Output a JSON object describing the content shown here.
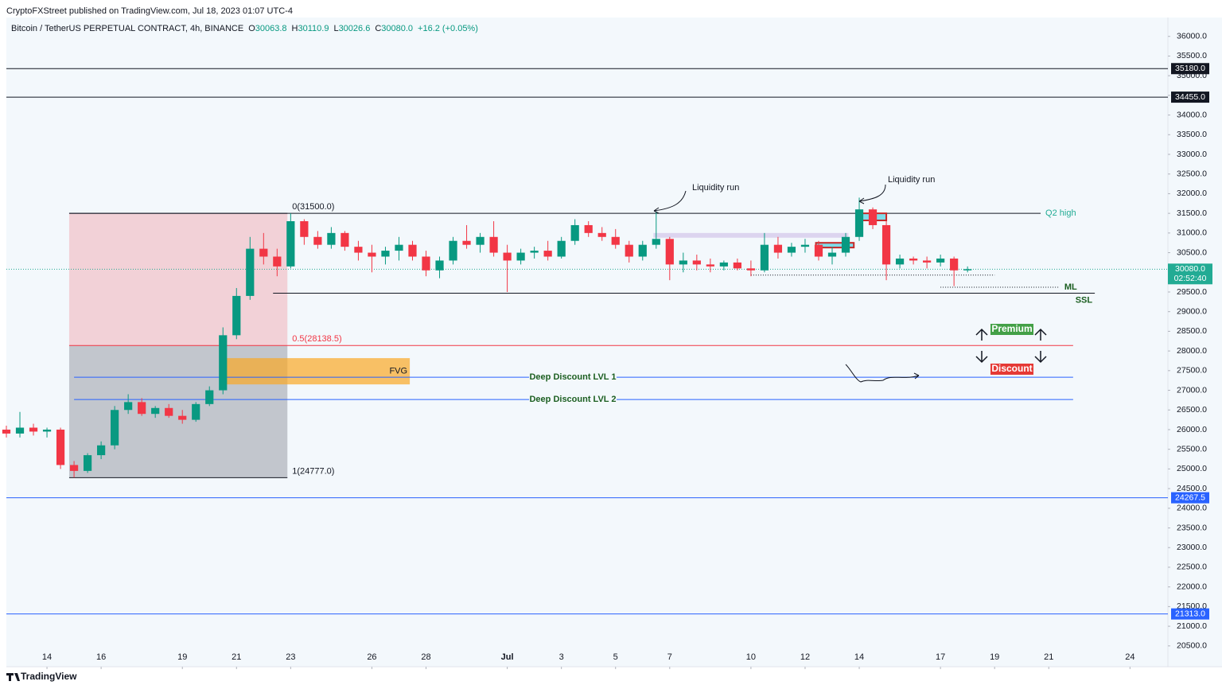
{
  "header": {
    "publisher": "CryptoFXStreet published on TradingView.com, Jul 18, 2023 01:07 UTC-4",
    "footer": "TradingView"
  },
  "chart_data": {
    "type": "candlestick",
    "title": "Bitcoin / TetherUS PERPETUAL CONTRACT, 4h, BINANCE",
    "ohlc": [
      {
        "label": "O",
        "value": "30063.8"
      },
      {
        "label": "H",
        "value": "30110.9"
      },
      {
        "label": "L",
        "value": "30026.6"
      },
      {
        "label": "C",
        "value": "30080.0"
      },
      {
        "value": "+16.2 (+0.05%)"
      }
    ],
    "x": [
      -1.5,
      -1,
      -0.5,
      0,
      0.5,
      1,
      1.5,
      2,
      2.5,
      3,
      3.5,
      4,
      4.5,
      5,
      5.5,
      6,
      6.5,
      7,
      7.5,
      8,
      8.5,
      9,
      9.5,
      10,
      10.5,
      11,
      11.5,
      12,
      12.5,
      13,
      13.5,
      14,
      14.5,
      15,
      15.5,
      16,
      16.5,
      17,
      17.5,
      18,
      18.5,
      19,
      19.5,
      20,
      20.5,
      21,
      21.5,
      22,
      22.5,
      23,
      23.5,
      24,
      24.5,
      25,
      25.5,
      26,
      26.5,
      27,
      27.5,
      28,
      28.5,
      29,
      29.5,
      30,
      30.5,
      31,
      31.5,
      32,
      32.5,
      33,
      33.5,
      34
    ],
    "open": [
      26000,
      25900,
      26050,
      25950,
      26000,
      25100,
      24950,
      25350,
      25600,
      26500,
      26700,
      26400,
      26550,
      26350,
      26250,
      26650,
      27000,
      28400,
      29400,
      30600,
      30400,
      30150,
      31300,
      30900,
      30700,
      31000,
      30650,
      30500,
      30400,
      30550,
      30700,
      30400,
      30050,
      30300,
      30800,
      30700,
      30900,
      30500,
      30300,
      30500,
      30550,
      30400,
      30800,
      31200,
      31000,
      30900,
      30700,
      30400,
      30700,
      30850,
      30200,
      30300,
      30200,
      30150,
      30250,
      30100,
      30050,
      30700,
      30500,
      30650,
      30700,
      30400,
      30500,
      30900,
      31600,
      31200,
      30200,
      30350,
      30300,
      30250,
      30350,
      30050
    ],
    "high": [
      26100,
      26450,
      26150,
      26050,
      26050,
      25200,
      25400,
      25700,
      26600,
      26900,
      26800,
      26600,
      26650,
      26500,
      26700,
      27100,
      28600,
      29600,
      30900,
      31000,
      30600,
      31500,
      31350,
      31050,
      31150,
      31050,
      30800,
      30700,
      30650,
      30900,
      30800,
      30550,
      30400,
      30900,
      31200,
      31000,
      31300,
      30700,
      30600,
      30650,
      30800,
      30900,
      31350,
      31300,
      31150,
      31100,
      30800,
      30800,
      31550,
      30900,
      30500,
      30450,
      30350,
      30300,
      30350,
      30300,
      31000,
      30900,
      30750,
      30850,
      30800,
      30650,
      31000,
      31900,
      31650,
      31300,
      30450,
      30400,
      30400,
      30450,
      30400,
      30150
    ],
    "low": [
      25800,
      25800,
      25850,
      25800,
      25000,
      24780,
      24900,
      25250,
      25500,
      26400,
      26350,
      26300,
      26300,
      26150,
      26200,
      26600,
      26900,
      28300,
      29300,
      30200,
      29900,
      30100,
      30700,
      30600,
      30600,
      30550,
      30300,
      30000,
      30200,
      30300,
      30300,
      29900,
      29850,
      30200,
      30600,
      30500,
      30400,
      29500,
      30200,
      30350,
      30300,
      30350,
      30700,
      30900,
      30800,
      30600,
      30250,
      30300,
      30600,
      29800,
      30000,
      30050,
      30000,
      30050,
      30050,
      29900,
      30000,
      30350,
      30400,
      30500,
      30300,
      30200,
      30400,
      30800,
      31100,
      29800,
      30100,
      30200,
      30100,
      30150,
      29650,
      30000
    ],
    "close": [
      25900,
      26050,
      25950,
      26000,
      25100,
      24950,
      25350,
      25600,
      26500,
      26700,
      26400,
      26550,
      26350,
      26250,
      26650,
      27000,
      28400,
      29400,
      30600,
      30400,
      30150,
      31300,
      30900,
      30700,
      31000,
      30650,
      30500,
      30400,
      30550,
      30700,
      30400,
      30050,
      30300,
      30800,
      30700,
      30900,
      30500,
      30300,
      30500,
      30550,
      30400,
      30800,
      31200,
      31000,
      30900,
      30700,
      30400,
      30700,
      30850,
      30200,
      30300,
      30200,
      30150,
      30250,
      30100,
      30050,
      30700,
      30500,
      30650,
      30700,
      30400,
      30500,
      30900,
      31600,
      31200,
      30200,
      30350,
      30300,
      30250,
      30350,
      30050,
      30080
    ],
    "up_color": "#089981",
    "down_color": "#f23645",
    "xlim": [
      -1.5,
      41.4
    ],
    "xticks": [
      {
        "value": 0,
        "label": "14"
      },
      {
        "value": 2,
        "label": "16"
      },
      {
        "value": 5,
        "label": "19"
      },
      {
        "value": 7,
        "label": "21"
      },
      {
        "value": 9,
        "label": "23"
      },
      {
        "value": 12,
        "label": "26"
      },
      {
        "value": 14,
        "label": "28"
      },
      {
        "value": 17,
        "label": "Jul"
      },
      {
        "value": 19,
        "label": "3"
      },
      {
        "value": 21,
        "label": "5"
      },
      {
        "value": 23,
        "label": "7"
      },
      {
        "value": 26,
        "label": "10"
      },
      {
        "value": 28,
        "label": "12"
      },
      {
        "value": 30,
        "label": "14"
      },
      {
        "value": 33,
        "label": "17"
      },
      {
        "value": 35,
        "label": "19"
      },
      {
        "value": 37,
        "label": "21"
      },
      {
        "value": 40,
        "label": "24"
      }
    ],
    "ylim": [
      19970,
      36480
    ],
    "yticks": [
      {
        "value": 20500,
        "label": "20500.0"
      },
      {
        "value": 21000,
        "label": "21000.0"
      },
      {
        "value": 21500,
        "label": "21500.0"
      },
      {
        "value": 22000,
        "label": "22000.0"
      },
      {
        "value": 22500,
        "label": "22500.0"
      },
      {
        "value": 23000,
        "label": "23000.0"
      },
      {
        "value": 23500,
        "label": "23500.0"
      },
      {
        "value": 24000,
        "label": "24000.0"
      },
      {
        "value": 24500,
        "label": "24500.0"
      },
      {
        "value": 25000,
        "label": "25000.0"
      },
      {
        "value": 25500,
        "label": "25500.0"
      },
      {
        "value": 26000,
        "label": "26000.0"
      },
      {
        "value": 26500,
        "label": "26500.0"
      },
      {
        "value": 27000,
        "label": "27000.0"
      },
      {
        "value": 27500,
        "label": "27500.0"
      },
      {
        "value": 28000,
        "label": "28000.0"
      },
      {
        "value": 28500,
        "label": "28500.0"
      },
      {
        "value": 29000,
        "label": "29000.0"
      },
      {
        "value": 29500,
        "label": "29500.0"
      },
      {
        "value": 30000,
        "label": "30000.0"
      },
      {
        "value": 30500,
        "label": "30500.0"
      },
      {
        "value": 31000,
        "label": "31000.0"
      },
      {
        "value": 31500,
        "label": "31500.0"
      },
      {
        "value": 32000,
        "label": "32000.0"
      },
      {
        "value": 32500,
        "label": "32500.0"
      },
      {
        "value": 33000,
        "label": "33000.0"
      },
      {
        "value": 33500,
        "label": "33500.0"
      },
      {
        "value": 34000,
        "label": "34000.0"
      },
      {
        "value": 34500,
        "label": "34500.0"
      },
      {
        "value": 35000,
        "label": "35000.0"
      },
      {
        "value": 35500,
        "label": "35500.0"
      },
      {
        "value": 36000,
        "label": "36000.0"
      }
    ],
    "grid": false,
    "price_levels": [
      {
        "value": 35180,
        "label": "35180.0",
        "color": "#131722"
      },
      {
        "value": 34455,
        "label": "34455.0",
        "color": "#131722"
      },
      {
        "value": 24267.5,
        "label": "24267.5",
        "color": "#2962ff"
      },
      {
        "value": 21313,
        "label": "21313.0",
        "color": "#2962ff"
      }
    ],
    "last_price": {
      "value": 30080,
      "label": "30080.0",
      "countdown": "02:52:40",
      "color": "#22ab94"
    },
    "fib": {
      "x": [
        0.82,
        8.88
      ],
      "levels": [
        {
          "value": 31500,
          "label": "0(31500.0)",
          "color": "#131722"
        },
        {
          "value": 28138.5,
          "label": "0.5(28138.5)",
          "color": "#f23645"
        },
        {
          "value": 24777,
          "label": "1(24777.0)",
          "color": "#131722"
        }
      ]
    },
    "lines": [
      {
        "label": "Q2 high",
        "value": 31500,
        "x": [
          0.82,
          36.7
        ],
        "color": "#131722",
        "label_color": "#22ab94"
      },
      {
        "label": "SSL",
        "value": 29470,
        "x": [
          8.35,
          38.7
        ],
        "color": "#131722",
        "label_color": "#1b5e20"
      },
      {
        "label": "ML",
        "value": 29620,
        "x": [
          33.0,
          37.4
        ],
        "color": "#131722",
        "label_color": "#1b5e20",
        "dash": true
      },
      {
        "value": 29930,
        "x": [
          26.0,
          35.0
        ],
        "color": "#131722",
        "dash": true
      },
      {
        "label": "Deep Discount LVL 1",
        "value": 27333,
        "x": [
          1.0,
          37.9
        ],
        "color": "#2962ff",
        "label_color": "#1b5e20"
      },
      {
        "label": "Deep Discount LVL 2",
        "value": 26766,
        "x": [
          1.0,
          37.9
        ],
        "color": "#2962ff",
        "label_color": "#1b5e20"
      }
    ],
    "zones": [
      {
        "label": "FVG",
        "y": [
          27150,
          27818
        ],
        "x": [
          6.38,
          13.4
        ],
        "color": "#f9a825"
      },
      {
        "y": [
          30880,
          31000
        ],
        "x": [
          22.4,
          29.6
        ],
        "color": "#d1c4e9"
      },
      {
        "y": [
          30630,
          30750
        ],
        "x": [
          28.4,
          29.8
        ],
        "color": "#4dd0e1",
        "border": "#c62828"
      },
      {
        "y": [
          31320,
          31500
        ],
        "x": [
          30.0,
          31.0
        ],
        "color": "#4dd0e1",
        "border": "#c62828"
      }
    ],
    "annotations": [
      "Liquidity run",
      "Liquidity run"
    ],
    "badges": [
      {
        "label": "Premium",
        "color": "#43a047"
      },
      {
        "label": "Discount",
        "color": "#e53935"
      }
    ]
  }
}
